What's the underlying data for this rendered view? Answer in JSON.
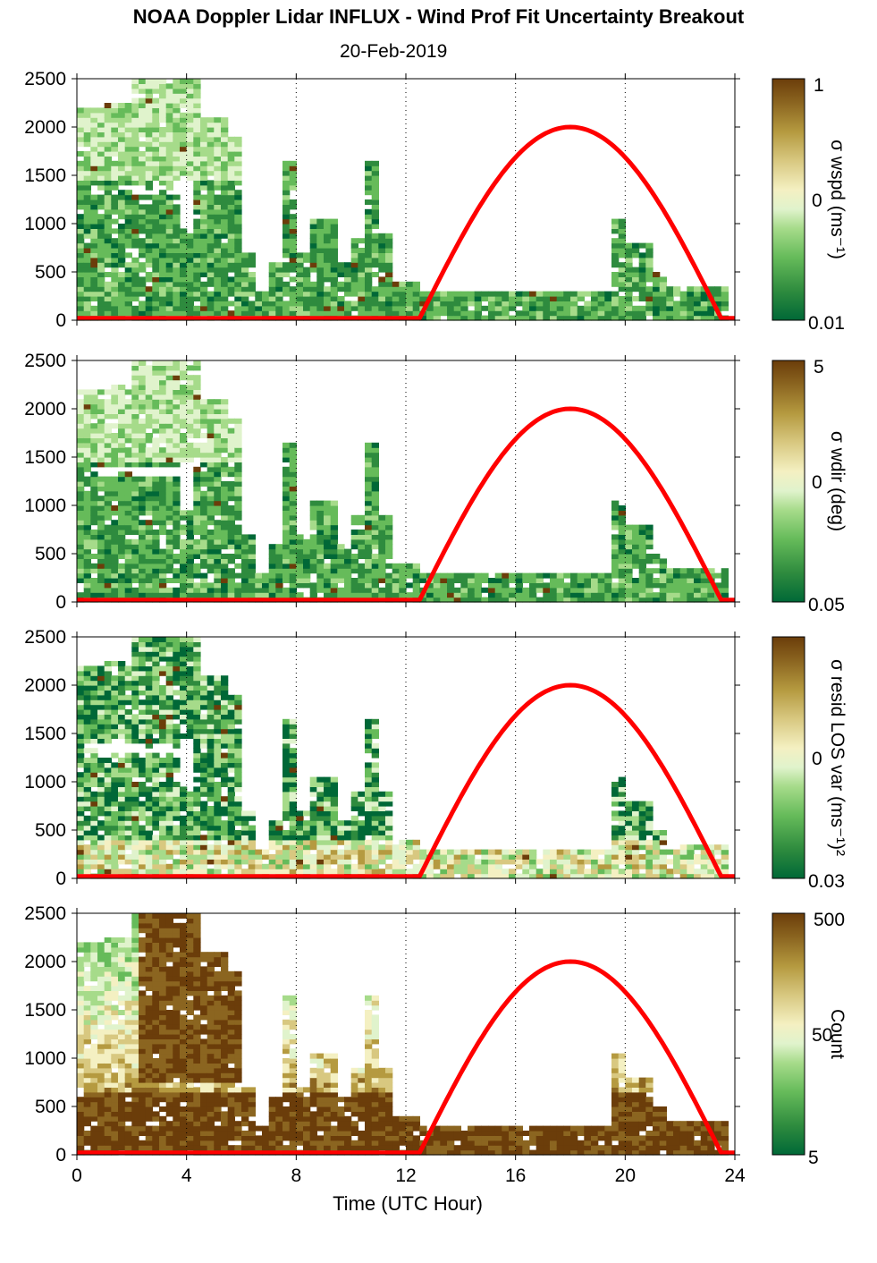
{
  "title": "NOAA Doppler Lidar INFLUX - Wind Prof Fit Uncertainty Breakout",
  "subtitle": "20-Feb-2019",
  "colors": {
    "sun_curve": "#ff0000",
    "colormap": [
      "#006837",
      "#2e8b3e",
      "#66bb5a",
      "#a6db8a",
      "#e0f3cc",
      "#f4f0c2",
      "#d8c880",
      "#b59a40",
      "#8b6520",
      "#6b3d0a"
    ]
  },
  "chart_data": [
    {
      "type": "heatmap",
      "xlabel": "",
      "xlim": [
        0,
        24
      ],
      "x_ticks": [
        0,
        4,
        8,
        12,
        16,
        20,
        24
      ],
      "ylim": [
        0,
        2500
      ],
      "y_ticks": [
        0,
        500,
        1000,
        1500,
        2000,
        2500
      ],
      "grid": "vertical dotted at 4-hour intervals",
      "colorbar": {
        "label": "σ wspd (ms⁻¹)",
        "scale": "log",
        "ticks": [
          "1",
          "0",
          "0.01"
        ]
      },
      "overlay_series": {
        "description": "red curve",
        "x": [
          0,
          12.5,
          14,
          16,
          18,
          20,
          22,
          23.5,
          24
        ],
        "y": [
          20,
          20,
          900,
          1700,
          2000,
          1700,
          900,
          20,
          20
        ]
      }
    },
    {
      "type": "heatmap",
      "xlabel": "",
      "xlim": [
        0,
        24
      ],
      "x_ticks": [
        0,
        4,
        8,
        12,
        16,
        20,
        24
      ],
      "ylim": [
        0,
        2500
      ],
      "y_ticks": [
        0,
        500,
        1000,
        1500,
        2000,
        2500
      ],
      "grid": "vertical dotted at 4-hour intervals",
      "colorbar": {
        "label": "σ wdir (deg)",
        "scale": "log",
        "ticks": [
          "5",
          "0",
          "0.05"
        ]
      },
      "overlay_series": {
        "description": "red curve",
        "x": [
          0,
          12.5,
          14,
          16,
          18,
          20,
          22,
          23.5,
          24
        ],
        "y": [
          20,
          20,
          900,
          1700,
          2000,
          1700,
          900,
          20,
          20
        ]
      }
    },
    {
      "type": "heatmap",
      "xlabel": "",
      "xlim": [
        0,
        24
      ],
      "x_ticks": [
        0,
        4,
        8,
        12,
        16,
        20,
        24
      ],
      "ylim": [
        0,
        2500
      ],
      "y_ticks": [
        0,
        500,
        1000,
        1500,
        2000,
        2500
      ],
      "grid": "vertical dotted at 4-hour intervals",
      "colorbar": {
        "label": "σ resid LOS var (ms⁻¹)²",
        "scale": "log",
        "ticks": [
          "0",
          "0.03"
        ]
      },
      "overlay_series": {
        "description": "red curve",
        "x": [
          0,
          12.5,
          14,
          16,
          18,
          20,
          22,
          23.5,
          24
        ],
        "y": [
          20,
          20,
          900,
          1700,
          2000,
          1700,
          900,
          20,
          20
        ]
      }
    },
    {
      "type": "heatmap",
      "xlabel": "Time (UTC Hour)",
      "xlim": [
        0,
        24
      ],
      "x_ticks": [
        0,
        4,
        8,
        12,
        16,
        20,
        24
      ],
      "ylim": [
        0,
        2500
      ],
      "y_ticks": [
        0,
        500,
        1000,
        1500,
        2000,
        2500
      ],
      "grid": "vertical dotted at 4-hour intervals",
      "colorbar": {
        "label": "Count",
        "scale": "log",
        "ticks": [
          "500",
          "50",
          "5"
        ]
      },
      "overlay_series": {
        "description": "red curve",
        "x": [
          0,
          12.5,
          14,
          16,
          18,
          20,
          22,
          23.5,
          24
        ],
        "y": [
          20,
          20,
          900,
          1700,
          2000,
          1700,
          900,
          20,
          20
        ]
      }
    }
  ]
}
